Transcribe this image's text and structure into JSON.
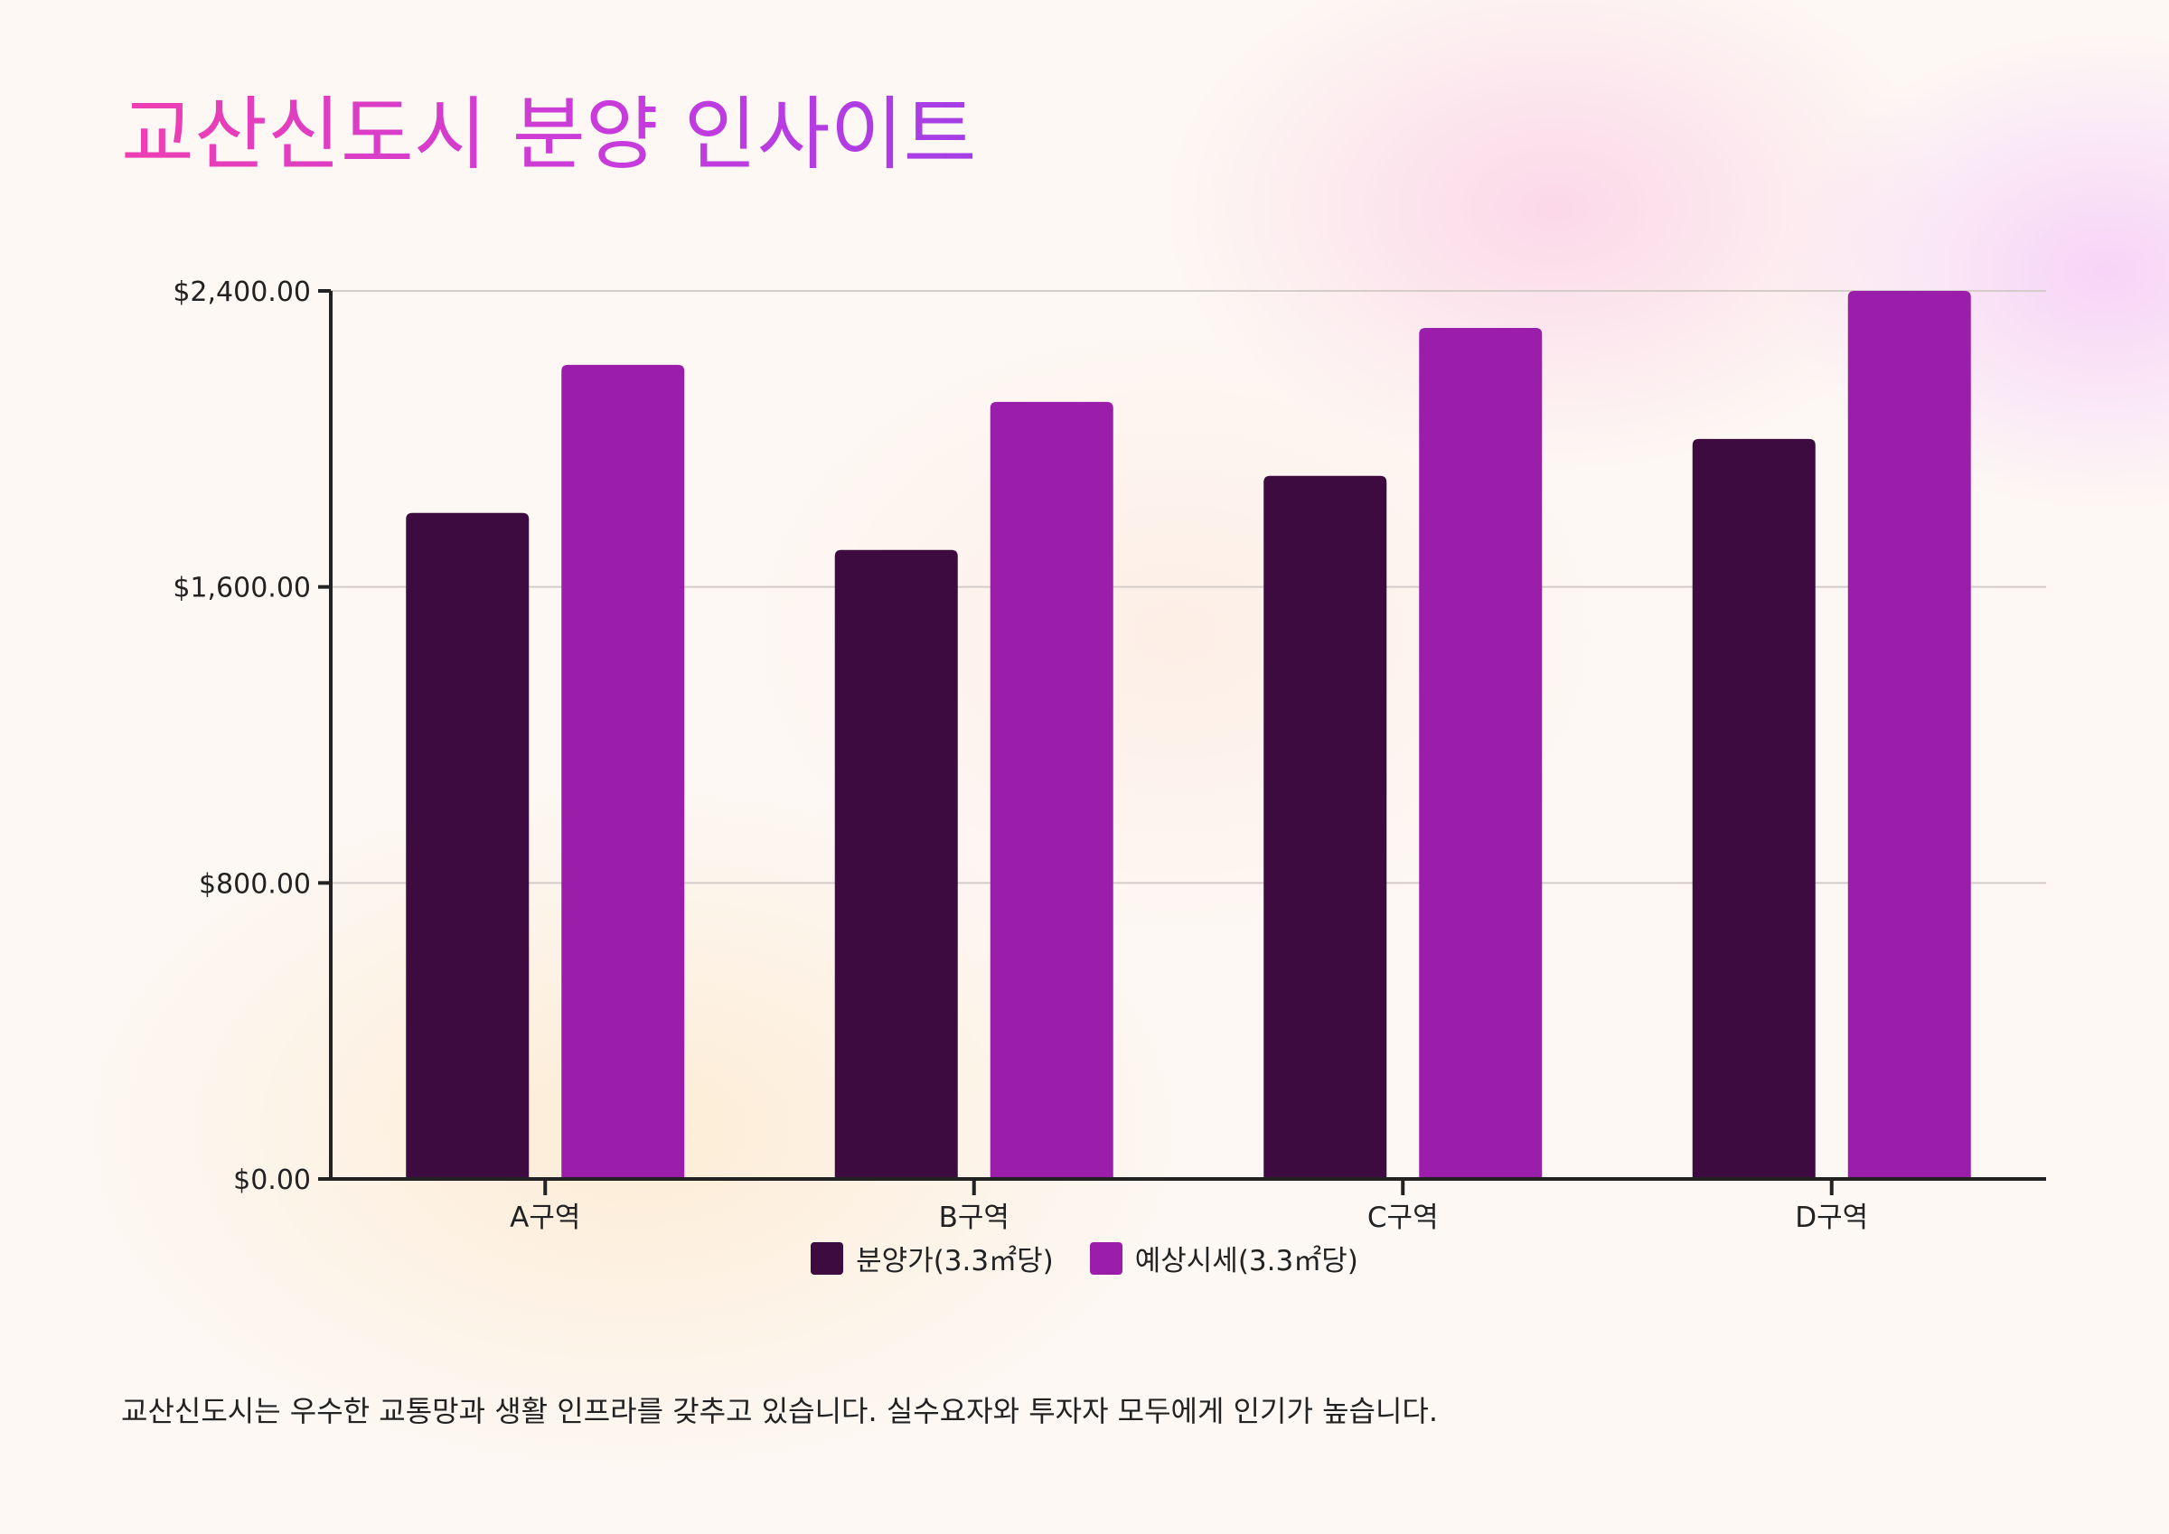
{
  "title": "교산신도시 분양 인사이트",
  "caption": "교산신도시는 우수한 교통망과 생활 인프라를 갖추고 있습니다. 실수요자와 투자자 모두에게 인기가 높습니다.",
  "chart_data": {
    "type": "bar",
    "title": "",
    "xlabel": "",
    "ylabel": "",
    "categories": [
      "A구역",
      "B구역",
      "C구역",
      "D구역"
    ],
    "series": [
      {
        "name": "분양가(3.3㎡당)",
        "color": "#3d0b3f",
        "values": [
          1800,
          1700,
          1900,
          2000
        ]
      },
      {
        "name": "예상시세(3.3㎡당)",
        "color": "#9a1ea9",
        "values": [
          2200,
          2100,
          2300,
          2400
        ]
      }
    ],
    "ylim": [
      0,
      2400
    ],
    "yticks": [
      0,
      800,
      1600,
      2400
    ],
    "ytick_labels": [
      "$0.00",
      "$800.00",
      "$1,600.00",
      "$2,400.00"
    ],
    "grid": true,
    "legend_position": "bottom"
  }
}
